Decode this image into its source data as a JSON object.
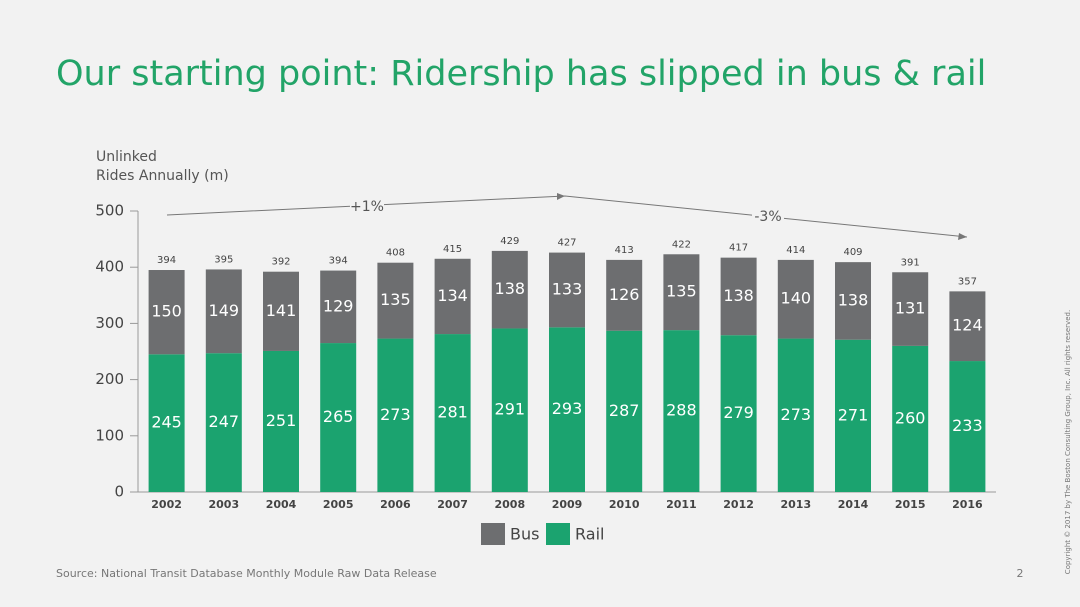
{
  "chart_data": {
    "type": "stacked_bar",
    "title": "Our starting point: Ridership has slipped in bus & rail",
    "y_label": [
      "Unlinked",
      "Rides Annually (m)"
    ],
    "categories": [
      "2002",
      "2003",
      "2004",
      "2005",
      "2006",
      "2007",
      "2008",
      "2009",
      "2010",
      "2011",
      "2012",
      "2013",
      "2014",
      "2015",
      "2016"
    ],
    "series": [
      {
        "name": "Rail",
        "color": "#1ba36f",
        "values": [
          245,
          247,
          251,
          265,
          273,
          281,
          291,
          293,
          287,
          288,
          279,
          273,
          271,
          260,
          233
        ]
      },
      {
        "name": "Bus",
        "color": "#6d6e70",
        "values": [
          150,
          149,
          141,
          129,
          135,
          134,
          138,
          133,
          126,
          135,
          138,
          140,
          138,
          131,
          124
        ]
      }
    ],
    "totals": [
      394,
      395,
      392,
      394,
      408,
      415,
      429,
      427,
      413,
      422,
      417,
      414,
      409,
      391,
      357
    ],
    "legend_order": [
      1,
      0
    ],
    "annotations": [
      "+1%",
      "-3%"
    ],
    "ylim": [
      0,
      500
    ],
    "yticks": [
      0,
      100,
      200,
      300,
      400,
      500
    ],
    "source": "Source: National Transit Database Monthly Module Raw Data Release",
    "page_number": "2",
    "copyright": "Copyright © 2017 by The Boston Consulting Group, Inc. All rights reserved."
  }
}
